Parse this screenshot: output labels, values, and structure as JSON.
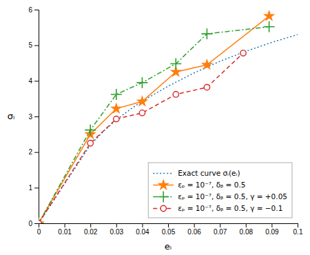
{
  "chart_data": {
    "type": "line",
    "xlabel": "eᵢ",
    "ylabel": "σᵢ",
    "xlim": [
      0,
      0.1
    ],
    "ylim": [
      0,
      6
    ],
    "xticks": [
      0,
      0.01,
      0.02,
      0.03,
      0.04,
      0.05,
      0.06,
      0.07,
      0.08,
      0.09,
      0.1
    ],
    "yticks": [
      0,
      1,
      2,
      3,
      4,
      5,
      6
    ],
    "grid": false,
    "legend": "lower right",
    "series": [
      {
        "name": "Exact curve σᵢ(eᵢ)",
        "x": [
          0,
          0.002,
          0.005,
          0.01,
          0.015,
          0.02,
          0.025,
          0.03,
          0.035,
          0.04,
          0.05,
          0.06,
          0.07,
          0.08,
          0.09,
          0.1
        ],
        "values": [
          0,
          0.22,
          0.55,
          1.1,
          1.65,
          2.2,
          2.58,
          2.9,
          3.18,
          3.43,
          3.85,
          4.22,
          4.55,
          4.83,
          5.08,
          5.3
        ],
        "line_style": "dotted"
      },
      {
        "name": "εₚ = 10⁻⁷, δᵦ = 0.5",
        "x": [
          0,
          0.02,
          0.03,
          0.04,
          0.053,
          0.065,
          0.089
        ],
        "values": [
          0,
          2.5,
          3.22,
          3.42,
          4.25,
          4.45,
          5.82
        ],
        "line_style": "solid",
        "marker": "star"
      },
      {
        "name": "εₚ = 10⁻⁷, δᵦ = 0.5, γ = +0.05",
        "x": [
          0,
          0.02,
          0.03,
          0.04,
          0.053,
          0.065,
          0.089
        ],
        "values": [
          0,
          2.62,
          3.62,
          3.95,
          4.48,
          5.32,
          5.52
        ],
        "line_style": "dashdot",
        "marker": "plus"
      },
      {
        "name": "εₚ = 10⁻⁷, δᵦ = 0.5, γ = −0.1",
        "x": [
          0,
          0.02,
          0.03,
          0.04,
          0.053,
          0.065,
          0.079
        ],
        "values": [
          0,
          2.25,
          2.93,
          3.1,
          3.62,
          3.82,
          4.78
        ],
        "line_style": "dashed",
        "marker": "circle"
      }
    ]
  }
}
